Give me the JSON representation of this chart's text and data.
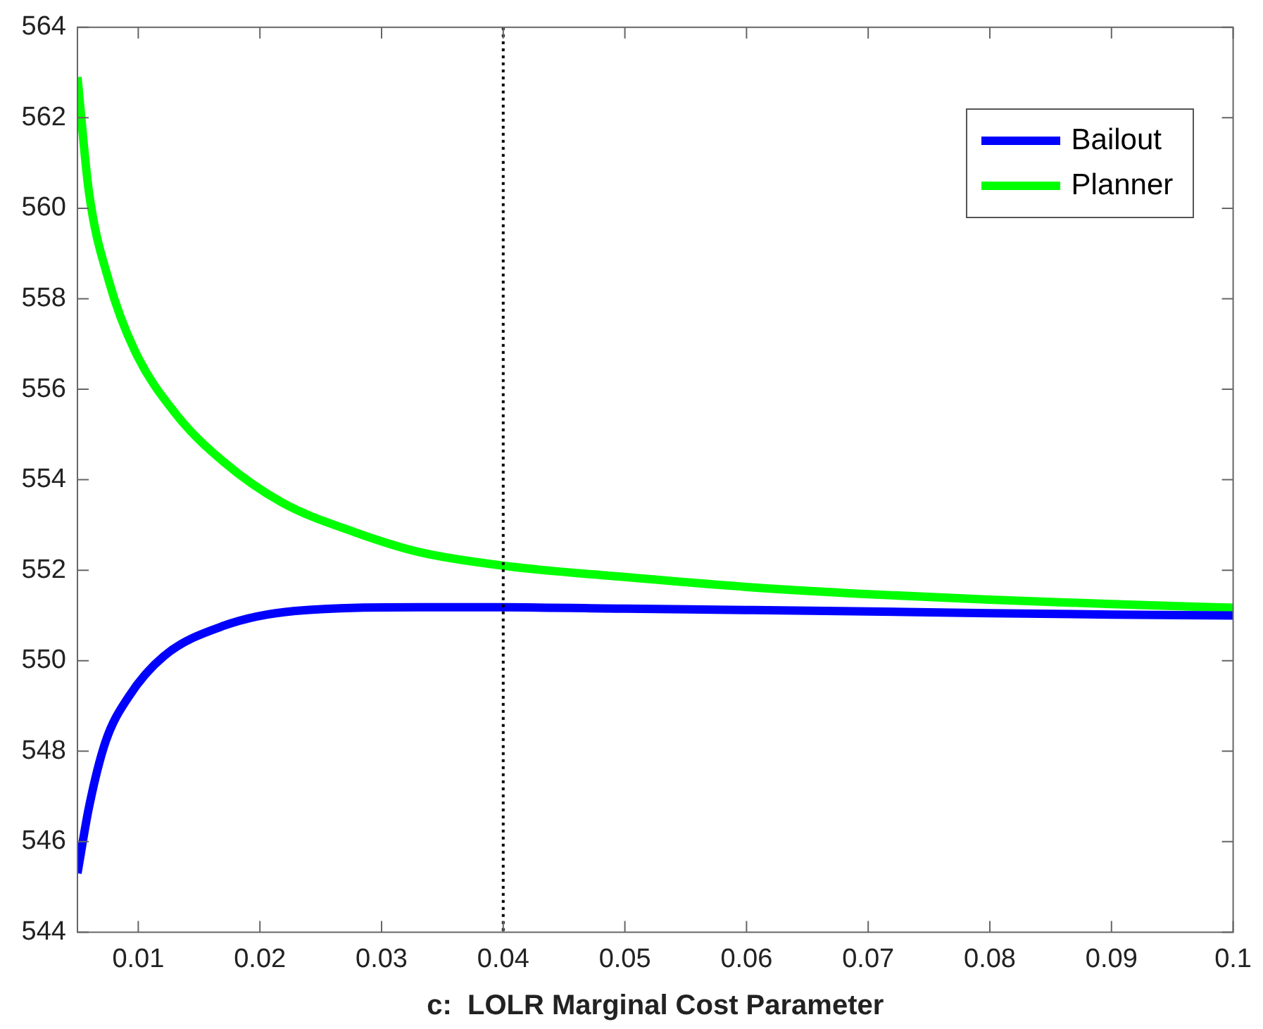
{
  "chart_data": {
    "type": "line",
    "xlabel": "c:  LOLR Marginal Cost Parameter",
    "xlim": [
      0.005,
      0.1
    ],
    "xticks": [
      0.01,
      0.02,
      0.03,
      0.04,
      0.05,
      0.06,
      0.07,
      0.08,
      0.09,
      {
        "value": 0.1,
        "label": "0.1"
      }
    ],
    "ylim": [
      544,
      564
    ],
    "yticks": [
      544,
      546,
      548,
      550,
      552,
      554,
      556,
      558,
      560,
      562,
      564
    ],
    "grid": false,
    "legend": "top right",
    "marker": "none",
    "line_style": "solid",
    "ref_lines": [
      {
        "axis": "x",
        "value": 0.04,
        "color": "#000000",
        "line_style": "dotted"
      }
    ],
    "series": [
      {
        "name": "Bailout",
        "color": "#0000ff",
        "x": [
          0.005,
          0.00594,
          0.0073,
          0.0092,
          0.0121,
          0.017,
          0.0229,
          0.0331,
          0.04,
          0.05,
          0.06,
          0.07,
          0.08,
          0.09,
          0.1
        ],
        "values": [
          545.3,
          546.75,
          548.2,
          549.2,
          550.1,
          550.77,
          551.1,
          551.18,
          551.18,
          551.15,
          551.12,
          551.09,
          551.05,
          551.02,
          551.0
        ]
      },
      {
        "name": "Planner",
        "color": "#00ff00",
        "x": [
          0.005,
          0.00594,
          0.00758,
          0.0097,
          0.0131,
          0.017,
          0.0218,
          0.0277,
          0.0331,
          0.04,
          0.05,
          0.06,
          0.07,
          0.08,
          0.09,
          0.1
        ],
        "values": [
          562.9,
          560.37,
          558.4,
          556.86,
          555.45,
          554.4,
          553.5,
          552.85,
          552.4,
          552.1,
          551.85,
          551.63,
          551.47,
          551.35,
          551.25,
          551.17
        ]
      }
    ]
  }
}
